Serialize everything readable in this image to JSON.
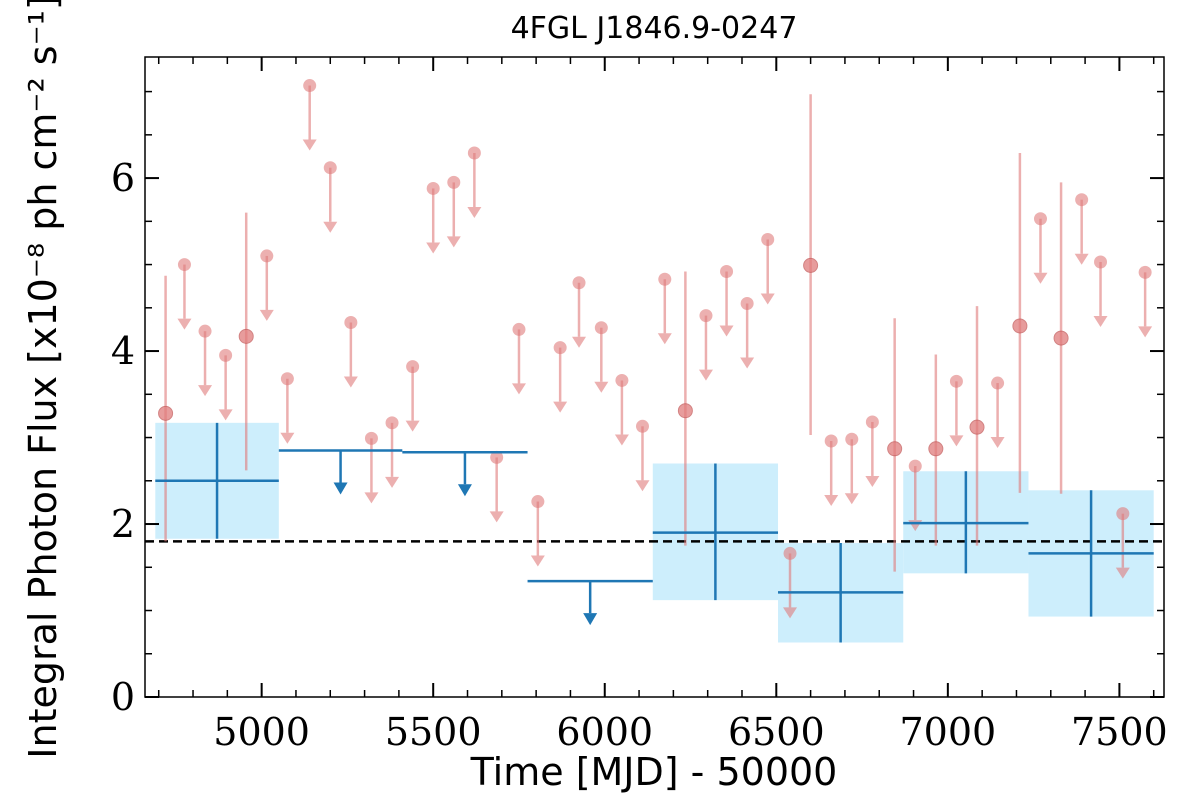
{
  "chart_data": {
    "type": "scatter",
    "title": "4FGL J1846.9-0247",
    "xlabel": "Time [MJD] - 50000",
    "ylabel": "Integral Photon Flux [x10⁻⁸ ph cm⁻² s⁻¹]",
    "xlim": [
      4660,
      7630
    ],
    "ylim": [
      0,
      7.4
    ],
    "x_ticks": [
      5000,
      5500,
      6000,
      6500,
      7000,
      7500
    ],
    "y_ticks": [
      0,
      2,
      4,
      6
    ],
    "x_tick_labels": [
      "5000",
      "5500",
      "6000",
      "6500",
      "7000",
      "7500"
    ],
    "y_tick_labels": [
      "0",
      "2",
      "4",
      "6"
    ],
    "reference_line": 1.8,
    "colors": {
      "fine": "#e07b7b",
      "coarse": "#1f77b4",
      "coarse_band": "#cdeefc",
      "reference": "#000000"
    },
    "fine_bins": {
      "detections": [
        {
          "x": 4720,
          "y": 3.28,
          "lo": 1.8,
          "hi": 4.87
        },
        {
          "x": 4955,
          "y": 4.17,
          "lo": 2.62,
          "hi": 5.6
        },
        {
          "x": 6235,
          "y": 3.31,
          "lo": 1.75,
          "hi": 4.92
        },
        {
          "x": 6600,
          "y": 4.99,
          "lo": 3.03,
          "hi": 6.97
        },
        {
          "x": 6845,
          "y": 2.87,
          "lo": 1.45,
          "hi": 4.38
        },
        {
          "x": 6965,
          "y": 2.87,
          "lo": 1.75,
          "hi": 3.96
        },
        {
          "x": 7085,
          "y": 3.12,
          "lo": 1.75,
          "hi": 4.52
        },
        {
          "x": 7210,
          "y": 4.29,
          "lo": 2.36,
          "hi": 6.29
        },
        {
          "x": 7330,
          "y": 4.15,
          "lo": 2.35,
          "hi": 5.95
        }
      ],
      "upper_limits": [
        {
          "x": 4775,
          "y": 5.0
        },
        {
          "x": 4835,
          "y": 4.23
        },
        {
          "x": 4895,
          "y": 3.95
        },
        {
          "x": 5015,
          "y": 5.1
        },
        {
          "x": 5075,
          "y": 3.68
        },
        {
          "x": 5140,
          "y": 7.07
        },
        {
          "x": 5200,
          "y": 6.12
        },
        {
          "x": 5260,
          "y": 4.33
        },
        {
          "x": 5320,
          "y": 2.99
        },
        {
          "x": 5380,
          "y": 3.17
        },
        {
          "x": 5440,
          "y": 3.82
        },
        {
          "x": 5500,
          "y": 5.88
        },
        {
          "x": 5560,
          "y": 5.95
        },
        {
          "x": 5620,
          "y": 6.29
        },
        {
          "x": 5685,
          "y": 2.77
        },
        {
          "x": 5750,
          "y": 4.25
        },
        {
          "x": 5805,
          "y": 2.26
        },
        {
          "x": 5870,
          "y": 4.04
        },
        {
          "x": 5925,
          "y": 4.79
        },
        {
          "x": 5990,
          "y": 4.27
        },
        {
          "x": 6050,
          "y": 3.66
        },
        {
          "x": 6110,
          "y": 3.13
        },
        {
          "x": 6175,
          "y": 4.83
        },
        {
          "x": 6295,
          "y": 4.41
        },
        {
          "x": 6355,
          "y": 4.92
        },
        {
          "x": 6415,
          "y": 4.55
        },
        {
          "x": 6475,
          "y": 5.29
        },
        {
          "x": 6540,
          "y": 1.66
        },
        {
          "x": 6660,
          "y": 2.96
        },
        {
          "x": 6720,
          "y": 2.98
        },
        {
          "x": 6780,
          "y": 3.18
        },
        {
          "x": 6905,
          "y": 2.67
        },
        {
          "x": 7025,
          "y": 3.65
        },
        {
          "x": 7145,
          "y": 3.63
        },
        {
          "x": 7270,
          "y": 5.53
        },
        {
          "x": 7390,
          "y": 5.75
        },
        {
          "x": 7445,
          "y": 5.03
        },
        {
          "x": 7510,
          "y": 2.12
        },
        {
          "x": 7575,
          "y": 4.91
        }
      ]
    },
    "coarse_bins": {
      "detections": [
        {
          "x0": 4690,
          "x1": 5050,
          "y": 2.5,
          "lo": 1.83,
          "hi": 3.17
        },
        {
          "x0": 6140,
          "x1": 6505,
          "y": 1.9,
          "lo": 1.12,
          "hi": 2.7
        },
        {
          "x0": 6505,
          "x1": 6870,
          "y": 1.21,
          "lo": 0.63,
          "hi": 1.78
        },
        {
          "x0": 6870,
          "x1": 7235,
          "y": 2.01,
          "lo": 1.43,
          "hi": 2.61
        },
        {
          "x0": 7235,
          "x1": 7600,
          "y": 1.66,
          "lo": 0.93,
          "hi": 2.39
        }
      ],
      "upper_limits": [
        {
          "x0": 5050,
          "x1": 5410,
          "y": 2.85
        },
        {
          "x0": 5410,
          "x1": 5775,
          "y": 2.83
        },
        {
          "x0": 5775,
          "x1": 6140,
          "y": 1.34
        }
      ]
    }
  }
}
